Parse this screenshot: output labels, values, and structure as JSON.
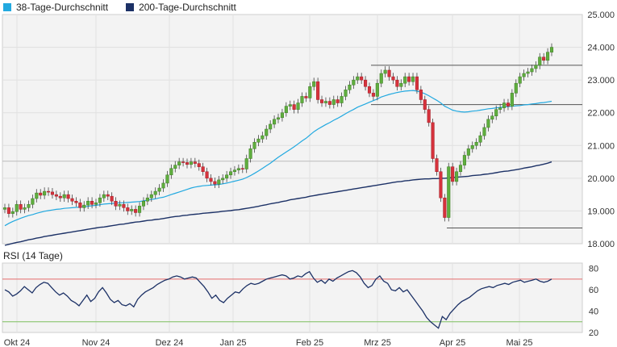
{
  "chart_data": [
    {
      "type": "candlestick",
      "legend": [
        {
          "name": "38-Tage-Durchschnitt",
          "color": "#22a9e0"
        },
        {
          "name": "200-Tage-Durchschnitt",
          "color": "#1c3166"
        }
      ],
      "ylim": [
        18.0,
        25.0
      ],
      "yticks": [
        "18.000",
        "19.000",
        "20.000",
        "21.000",
        "22.000",
        "23.000",
        "24.000",
        "25.000"
      ],
      "xticks": [
        "Okt 24",
        "Nov 24",
        "Dez 24",
        "Jan 25",
        "Feb 25",
        "Mrz 25",
        "Apr 25",
        "Mai 25"
      ],
      "closes": [
        19.1,
        18.92,
        18.98,
        19.2,
        19.05,
        19.1,
        19.2,
        19.38,
        19.55,
        19.48,
        19.6,
        19.58,
        19.5,
        19.45,
        19.4,
        19.5,
        19.38,
        19.3,
        19.25,
        19.1,
        19.18,
        19.3,
        19.2,
        19.25,
        19.4,
        19.5,
        19.45,
        19.3,
        19.15,
        19.2,
        19.1,
        19.0,
        19.05,
        18.95,
        19.15,
        19.3,
        19.4,
        19.5,
        19.6,
        19.7,
        19.85,
        20.1,
        20.3,
        20.4,
        20.5,
        20.48,
        20.42,
        20.5,
        20.45,
        20.35,
        20.2,
        20.0,
        19.9,
        19.82,
        19.95,
        20.0,
        20.1,
        20.2,
        20.25,
        20.3,
        20.28,
        20.6,
        20.9,
        21.1,
        21.2,
        21.3,
        21.5,
        21.65,
        21.8,
        21.85,
        22.0,
        22.2,
        22.25,
        22.1,
        22.3,
        22.5,
        22.45,
        22.8,
        22.95,
        22.4,
        22.3,
        22.35,
        22.25,
        22.4,
        22.3,
        22.5,
        22.7,
        22.85,
        23.0,
        23.1,
        23.0,
        22.8,
        22.6,
        22.5,
        22.9,
        23.2,
        23.3,
        23.1,
        23.0,
        22.8,
        22.9,
        23.1,
        22.95,
        23.1,
        22.7,
        22.4,
        22.1,
        21.7,
        20.6,
        20.2,
        19.4,
        18.8,
        20.35,
        19.9,
        20.2,
        20.4,
        20.7,
        20.9,
        21.0,
        21.1,
        21.3,
        21.55,
        21.8,
        21.9,
        22.1,
        22.15,
        22.3,
        22.2,
        22.6,
        22.9,
        23.1,
        23.2,
        23.25,
        23.35,
        23.45,
        23.7,
        23.6,
        23.85,
        24.0
      ],
      "ma38": [
        18.55,
        18.62,
        18.68,
        18.73,
        18.78,
        18.82,
        18.86,
        18.89,
        18.93,
        18.96,
        18.99,
        19.01,
        19.03,
        19.05,
        19.06,
        19.08,
        19.09,
        19.1,
        19.11,
        19.12,
        19.13,
        19.14,
        19.16,
        19.17,
        19.19,
        19.21,
        19.22,
        19.23,
        19.24,
        19.25,
        19.25,
        19.26,
        19.27,
        19.28,
        19.29,
        19.31,
        19.33,
        19.35,
        19.37,
        19.4,
        19.42,
        19.46,
        19.5,
        19.54,
        19.58,
        19.62,
        19.66,
        19.7,
        19.73,
        19.75,
        19.77,
        19.78,
        19.79,
        19.8,
        19.81,
        19.83,
        19.85,
        19.88,
        19.91,
        19.94,
        19.97,
        20.02,
        20.08,
        20.15,
        20.22,
        20.3,
        20.38,
        20.46,
        20.55,
        20.64,
        20.72,
        20.8,
        20.88,
        20.96,
        21.05,
        21.14,
        21.22,
        21.32,
        21.42,
        21.5,
        21.57,
        21.64,
        21.7,
        21.77,
        21.83,
        21.9,
        21.97,
        22.04,
        22.1,
        22.17,
        22.22,
        22.27,
        22.32,
        22.37,
        22.42,
        22.48,
        22.52,
        22.56,
        22.59,
        22.62,
        22.64,
        22.66,
        22.67,
        22.68,
        22.66,
        22.63,
        22.58,
        22.52,
        22.45,
        22.38,
        22.3,
        22.2,
        22.14,
        22.08,
        22.05,
        22.03,
        22.02,
        22.03,
        22.05,
        22.06,
        22.08,
        22.1,
        22.12,
        22.13,
        22.15,
        22.16,
        22.18,
        22.19,
        22.2,
        22.21,
        22.22,
        22.24,
        22.25,
        22.27,
        22.28,
        22.3,
        22.31,
        22.33,
        22.35
      ],
      "ma200": [
        17.95,
        17.98,
        18.01,
        18.04,
        18.06,
        18.09,
        18.12,
        18.14,
        18.17,
        18.19,
        18.22,
        18.24,
        18.26,
        18.28,
        18.3,
        18.32,
        18.34,
        18.36,
        18.38,
        18.4,
        18.42,
        18.44,
        18.46,
        18.48,
        18.5,
        18.51,
        18.53,
        18.55,
        18.57,
        18.59,
        18.6,
        18.62,
        18.64,
        18.66,
        18.67,
        18.69,
        18.71,
        18.72,
        18.74,
        18.75,
        18.77,
        18.79,
        18.81,
        18.83,
        18.84,
        18.86,
        18.87,
        18.89,
        18.9,
        18.91,
        18.93,
        18.94,
        18.95,
        18.96,
        18.97,
        18.99,
        19.0,
        19.01,
        19.03,
        19.04,
        19.06,
        19.08,
        19.1,
        19.12,
        19.14,
        19.17,
        19.19,
        19.22,
        19.24,
        19.26,
        19.29,
        19.31,
        19.34,
        19.36,
        19.38,
        19.4,
        19.42,
        19.45,
        19.47,
        19.49,
        19.51,
        19.53,
        19.55,
        19.57,
        19.59,
        19.61,
        19.63,
        19.65,
        19.67,
        19.69,
        19.71,
        19.73,
        19.75,
        19.77,
        19.79,
        19.81,
        19.83,
        19.85,
        19.87,
        19.89,
        19.9,
        19.92,
        19.93,
        19.95,
        19.96,
        19.97,
        19.98,
        19.98,
        19.99,
        19.99,
        20.0,
        20.0,
        20.01,
        20.02,
        20.03,
        20.04,
        20.05,
        20.06,
        20.08,
        20.09,
        20.1,
        20.12,
        20.13,
        20.15,
        20.17,
        20.19,
        20.21,
        20.22,
        20.24,
        20.26,
        20.28,
        20.31,
        20.33,
        20.35,
        20.38,
        20.4,
        20.43,
        20.46,
        20.5
      ],
      "reference_lines": [
        23.45,
        22.25,
        20.52,
        18.48
      ]
    },
    {
      "type": "line",
      "title": "RSI (14 Tage)",
      "ylim": [
        20,
        85
      ],
      "yticks": [
        "20",
        "40",
        "60",
        "80"
      ],
      "reference_lines": [
        {
          "value": 70,
          "color": "#e46b6b"
        },
        {
          "value": 30,
          "color": "#7dbf5e"
        }
      ],
      "values": [
        60,
        58,
        54,
        56,
        59,
        63,
        60,
        57,
        62,
        65,
        67,
        66,
        62,
        58,
        55,
        57,
        54,
        50,
        48,
        45,
        50,
        55,
        49,
        52,
        58,
        62,
        57,
        51,
        48,
        50,
        46,
        45,
        47,
        44,
        51,
        55,
        58,
        60,
        62,
        65,
        67,
        69,
        70,
        72,
        73,
        72,
        70,
        71,
        72,
        71,
        67,
        63,
        58,
        52,
        55,
        50,
        48,
        52,
        55,
        58,
        57,
        61,
        64,
        66,
        65,
        66,
        68,
        70,
        71,
        72,
        73,
        74,
        73,
        70,
        71,
        73,
        72,
        75,
        77,
        71,
        67,
        69,
        66,
        70,
        68,
        71,
        73,
        75,
        77,
        78,
        76,
        72,
        66,
        62,
        64,
        70,
        73,
        68,
        66,
        60,
        59,
        62,
        58,
        60,
        55,
        50,
        45,
        40,
        34,
        30,
        27,
        24,
        35,
        32,
        38,
        42,
        46,
        49,
        51,
        53,
        56,
        59,
        61,
        62,
        63,
        62,
        64,
        65,
        66,
        65,
        67,
        68,
        69,
        67,
        68,
        69,
        70,
        68,
        67,
        68,
        70
      ]
    }
  ]
}
